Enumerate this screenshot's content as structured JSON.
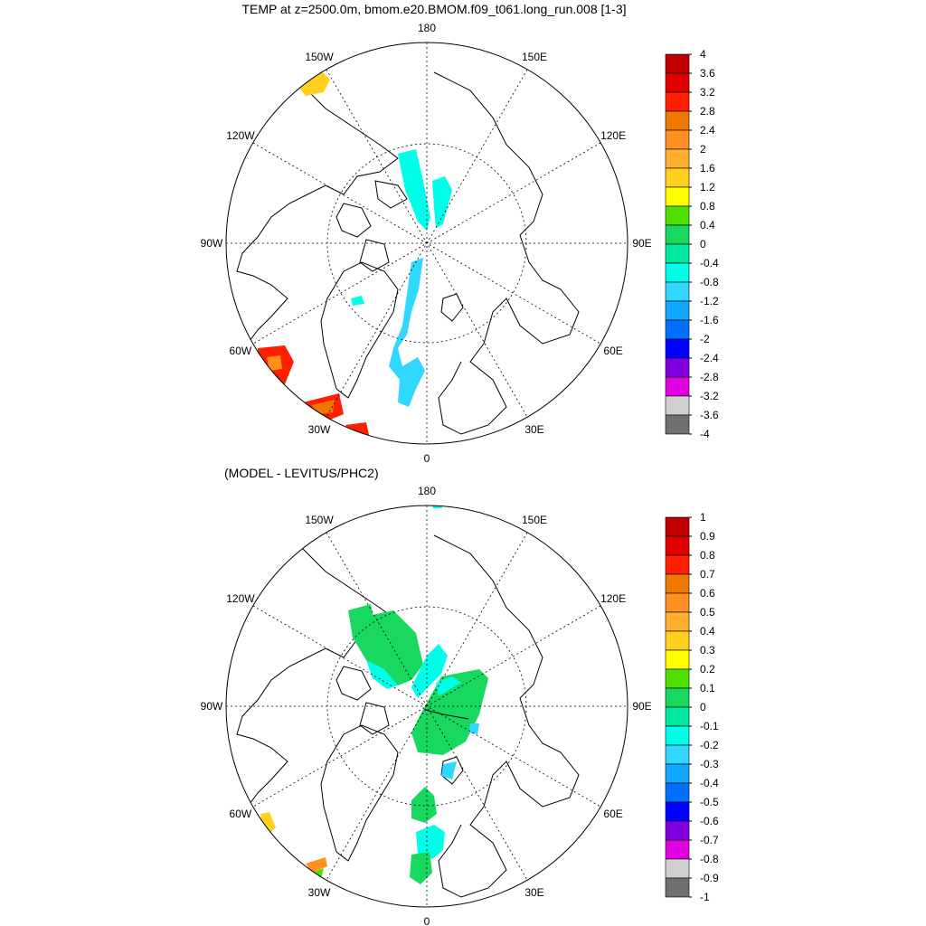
{
  "title": "TEMP at z=2500.0m, bmom.e20.BMOM.f09_t061.long_run.008 [1-3]",
  "panel2_title": "(MODEL - LEVITUS/PHC2)",
  "lon_labels": [
    "180",
    "150E",
    "120E",
    "90E",
    "60E",
    "30E",
    "0",
    "30W",
    "60W",
    "90W",
    "120W",
    "150W"
  ],
  "chart_data": [
    {
      "type": "polar-stereographic-contour-map",
      "region": "Arctic (north polar)",
      "variable": "TEMP",
      "depth": "z=2500.0m",
      "colorbar": {
        "labels": [
          "4",
          "3.6",
          "3.2",
          "2.8",
          "2.4",
          "2",
          "1.6",
          "1.2",
          "0.8",
          "0.4",
          "0",
          "-0.4",
          "-0.8",
          "-1.2",
          "-1.6",
          "-2",
          "-2.4",
          "-2.8",
          "-3.2",
          "-3.6",
          "-4"
        ],
        "colors": [
          "#c00000",
          "#e00000",
          "#ff2000",
          "#f07800",
          "#ff9020",
          "#ffb030",
          "#ffd020",
          "#ffff00",
          "#50e000",
          "#18d860",
          "#00e8a0",
          "#00ffe8",
          "#30d8ff",
          "#10a8ff",
          "#0070ff",
          "#0000ff",
          "#8000e0",
          "#e000e0",
          "#d0d0d0",
          "#707070"
        ]
      }
    },
    {
      "type": "polar-stereographic-contour-map",
      "region": "Arctic (north polar)",
      "variable": "TEMP difference",
      "comparison": "(MODEL - LEVITUS/PHC2)",
      "colorbar": {
        "labels": [
          "1",
          "0.9",
          "0.8",
          "0.7",
          "0.6",
          "0.5",
          "0.4",
          "0.3",
          "0.2",
          "0.1",
          "0",
          "-0.1",
          "-0.2",
          "-0.3",
          "-0.4",
          "-0.5",
          "-0.6",
          "-0.7",
          "-0.8",
          "-0.9",
          "-1"
        ],
        "colors": [
          "#c00000",
          "#e00000",
          "#ff2000",
          "#f07800",
          "#ff9020",
          "#ffb030",
          "#ffd020",
          "#ffff00",
          "#50e000",
          "#18d860",
          "#00e8a0",
          "#00ffe8",
          "#30d8ff",
          "#10a8ff",
          "#0070ff",
          "#0000ff",
          "#8000e0",
          "#e000e0",
          "#d0d0d0",
          "#707070"
        ]
      }
    }
  ]
}
